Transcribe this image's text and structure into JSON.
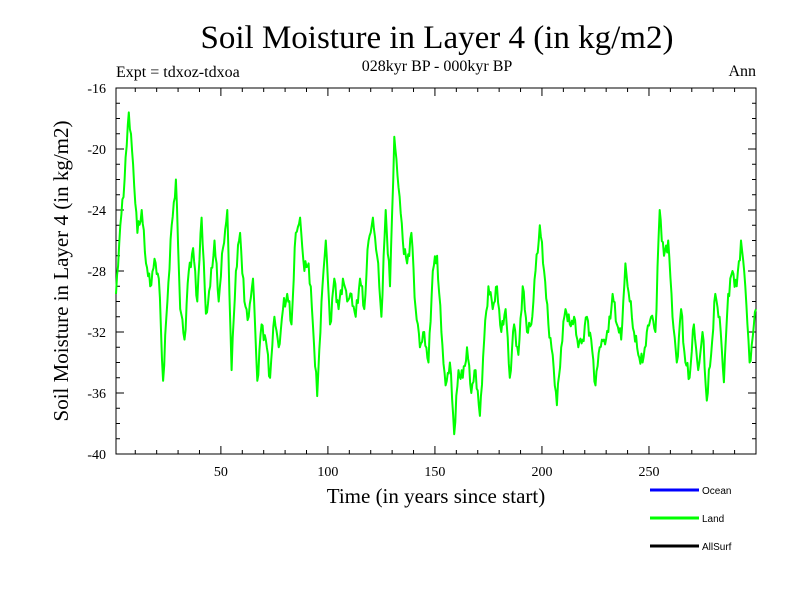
{
  "chart_data": {
    "type": "line",
    "title": "Soil Moisture in Layer 4 (in kg/m2)",
    "subtitle": "028kyr BP - 000kyr BP",
    "left_note": "Expt = tdxoz-tdxoa",
    "right_note": "Ann",
    "xlabel": "Time (in years since start)",
    "ylabel": "Soil Moisture in Layer 4 (in kg/m2)",
    "xlim": [
      1,
      300
    ],
    "ylim": [
      -40,
      -16
    ],
    "xticks": [
      50,
      100,
      150,
      200,
      250
    ],
    "yticks": [
      -16,
      -20,
      -24,
      -28,
      -32,
      -36,
      -40
    ],
    "legend_position": "bottom-right, below plot",
    "legend": [
      {
        "name": "Ocean",
        "color": "#0000ff"
      },
      {
        "name": "Land",
        "color": "#00ff00"
      },
      {
        "name": "AllSurf",
        "color": "#000000"
      }
    ],
    "series": [
      {
        "name": "Land",
        "color": "#00ff00",
        "anchors": [
          [
            1,
            -29.5
          ],
          [
            3,
            -25
          ],
          [
            5,
            -22
          ],
          [
            7,
            -17.6
          ],
          [
            9,
            -21
          ],
          [
            11,
            -25.5
          ],
          [
            13,
            -24
          ],
          [
            15,
            -27.5
          ],
          [
            17,
            -29
          ],
          [
            19,
            -27.2
          ],
          [
            21,
            -28.5
          ],
          [
            23,
            -35.2
          ],
          [
            25,
            -30
          ],
          [
            27,
            -25
          ],
          [
            29,
            -22
          ],
          [
            31,
            -30.5
          ],
          [
            33,
            -32.5
          ],
          [
            35,
            -28
          ],
          [
            37,
            -26.5
          ],
          [
            39,
            -30
          ],
          [
            41,
            -24.5
          ],
          [
            43,
            -30.8
          ],
          [
            45,
            -29
          ],
          [
            47,
            -26
          ],
          [
            49,
            -30
          ],
          [
            51,
            -26.5
          ],
          [
            53,
            -24
          ],
          [
            55,
            -34.5
          ],
          [
            57,
            -28
          ],
          [
            59,
            -25.5
          ],
          [
            61,
            -30
          ],
          [
            63,
            -31
          ],
          [
            65,
            -28.5
          ],
          [
            67,
            -35.2
          ],
          [
            69,
            -31.5
          ],
          [
            71,
            -32.5
          ],
          [
            73,
            -35
          ],
          [
            75,
            -31
          ],
          [
            77,
            -33
          ],
          [
            79,
            -30.5
          ],
          [
            81,
            -29.5
          ],
          [
            83,
            -31.5
          ],
          [
            85,
            -25.5
          ],
          [
            87,
            -24.5
          ],
          [
            89,
            -28
          ],
          [
            91,
            -27.5
          ],
          [
            93,
            -31.5
          ],
          [
            95,
            -36.2
          ],
          [
            97,
            -30
          ],
          [
            99,
            -26
          ],
          [
            101,
            -31.5
          ],
          [
            103,
            -28.5
          ],
          [
            105,
            -30.5
          ],
          [
            107,
            -28.5
          ],
          [
            109,
            -30
          ],
          [
            111,
            -29.5
          ],
          [
            113,
            -31
          ],
          [
            115,
            -28.5
          ],
          [
            117,
            -30.5
          ],
          [
            119,
            -26
          ],
          [
            121,
            -24.5
          ],
          [
            123,
            -27
          ],
          [
            125,
            -31
          ],
          [
            127,
            -24
          ],
          [
            129,
            -29
          ],
          [
            131,
            -19.2
          ],
          [
            133,
            -22.5
          ],
          [
            135,
            -26
          ],
          [
            137,
            -27.5
          ],
          [
            139,
            -25.5
          ],
          [
            141,
            -30.5
          ],
          [
            143,
            -33
          ],
          [
            145,
            -32
          ],
          [
            147,
            -34
          ],
          [
            149,
            -28
          ],
          [
            151,
            -27
          ],
          [
            153,
            -32
          ],
          [
            155,
            -35.5
          ],
          [
            157,
            -34
          ],
          [
            159,
            -38.7
          ],
          [
            161,
            -34.5
          ],
          [
            163,
            -35
          ],
          [
            165,
            -33
          ],
          [
            167,
            -36
          ],
          [
            169,
            -34.5
          ],
          [
            171,
            -37.5
          ],
          [
            173,
            -32.5
          ],
          [
            175,
            -29
          ],
          [
            177,
            -30.5
          ],
          [
            179,
            -29
          ],
          [
            181,
            -32
          ],
          [
            183,
            -30.5
          ],
          [
            185,
            -35
          ],
          [
            187,
            -31.5
          ],
          [
            189,
            -33.5
          ],
          [
            191,
            -29
          ],
          [
            193,
            -32
          ],
          [
            195,
            -31.5
          ],
          [
            197,
            -28
          ],
          [
            199,
            -25
          ],
          [
            201,
            -28
          ],
          [
            203,
            -31.5
          ],
          [
            205,
            -33.5
          ],
          [
            207,
            -36.8
          ],
          [
            209,
            -33
          ],
          [
            211,
            -30.5
          ],
          [
            213,
            -31.5
          ],
          [
            215,
            -31
          ],
          [
            217,
            -33
          ],
          [
            219,
            -32.5
          ],
          [
            221,
            -31
          ],
          [
            223,
            -32.5
          ],
          [
            225,
            -35.5
          ],
          [
            227,
            -33
          ],
          [
            229,
            -32.5
          ],
          [
            231,
            -32
          ],
          [
            233,
            -29.5
          ],
          [
            235,
            -31.5
          ],
          [
            237,
            -32.5
          ],
          [
            239,
            -27.5
          ],
          [
            241,
            -30
          ],
          [
            243,
            -32
          ],
          [
            245,
            -33.5
          ],
          [
            247,
            -34
          ],
          [
            249,
            -32
          ],
          [
            251,
            -31
          ],
          [
            253,
            -32
          ],
          [
            255,
            -24
          ],
          [
            257,
            -27
          ],
          [
            259,
            -26
          ],
          [
            261,
            -31
          ],
          [
            263,
            -34
          ],
          [
            265,
            -30.5
          ],
          [
            267,
            -34
          ],
          [
            269,
            -35
          ],
          [
            271,
            -31.5
          ],
          [
            273,
            -34.5
          ],
          [
            275,
            -32
          ],
          [
            277,
            -36.5
          ],
          [
            279,
            -33.5
          ],
          [
            281,
            -29.5
          ],
          [
            283,
            -31
          ],
          [
            285,
            -35.3
          ],
          [
            287,
            -29.5
          ],
          [
            289,
            -28
          ],
          [
            291,
            -29
          ],
          [
            293,
            -26
          ],
          [
            295,
            -29
          ],
          [
            297,
            -34
          ],
          [
            300,
            -30.5
          ]
        ]
      }
    ]
  }
}
